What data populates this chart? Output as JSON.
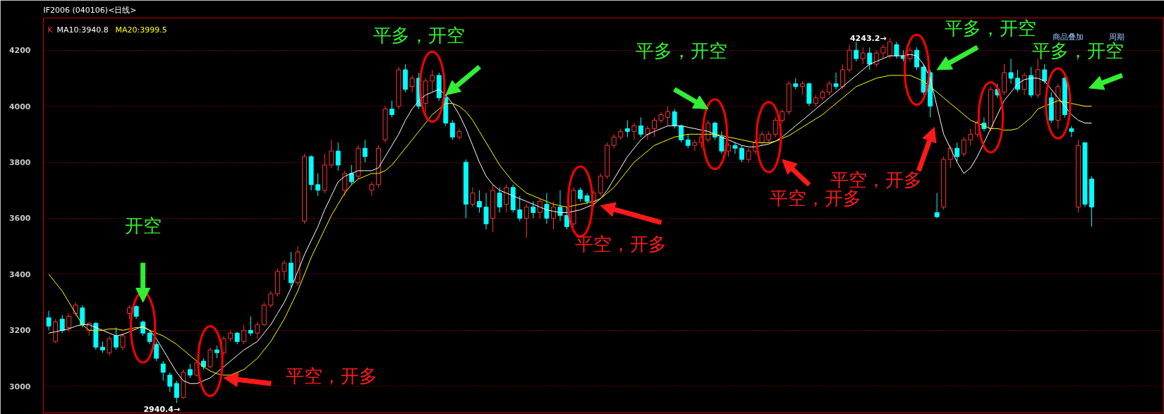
{
  "chart_data": {
    "type": "candlestick",
    "title": "IF2006 (040106)<日线>",
    "categories": [
      null,
      null,
      null,
      null,
      null,
      null,
      null,
      null,
      null,
      null,
      null,
      null,
      null,
      null,
      null,
      null,
      null,
      null,
      null,
      null,
      null,
      null,
      null,
      null,
      null,
      null,
      null,
      null,
      null,
      null,
      null,
      null,
      null,
      null,
      null,
      null,
      null,
      null,
      null,
      null,
      null,
      null,
      null,
      null,
      null,
      null,
      null,
      null,
      null,
      null,
      null,
      null,
      null,
      null,
      null,
      null,
      null,
      null,
      null,
      null,
      null,
      null,
      null,
      null,
      null,
      null,
      null,
      null,
      null,
      null,
      null,
      null,
      null,
      null,
      null,
      null,
      null,
      null,
      null,
      null,
      null,
      null,
      null,
      null,
      null,
      null,
      null,
      null,
      null,
      null,
      null,
      null,
      null,
      null,
      null,
      null,
      null,
      null,
      null,
      null,
      null,
      null,
      null,
      null,
      null,
      null,
      null,
      null,
      null,
      null,
      null,
      null,
      null,
      null,
      null,
      null,
      null,
      null,
      null,
      null,
      null,
      null,
      null,
      null,
      null,
      null,
      null,
      null,
      null,
      null,
      null,
      null,
      null,
      null,
      null,
      null,
      null,
      null,
      null,
      null,
      null,
      null,
      null,
      null,
      null,
      null,
      null,
      null,
      null,
      null,
      null,
      null,
      null,
      null,
      null,
      null
    ],
    "series": [
      {
        "name": "K",
        "ohlc": [
          [
            3245,
            3270,
            3200,
            3215
          ],
          [
            3160,
            3240,
            3155,
            3230
          ],
          [
            3240,
            3255,
            3190,
            3200
          ],
          [
            3210,
            3260,
            3195,
            3250
          ],
          [
            3260,
            3300,
            3250,
            3290
          ],
          [
            3280,
            3290,
            3210,
            3220
          ],
          [
            3200,
            3230,
            3180,
            3225
          ],
          [
            3225,
            3230,
            3130,
            3140
          ],
          [
            3140,
            3160,
            3120,
            3130
          ],
          [
            3120,
            3180,
            3110,
            3170
          ],
          [
            3180,
            3210,
            3130,
            3140
          ],
          [
            3140,
            3190,
            3130,
            3180
          ],
          [
            3260,
            3290,
            3240,
            3280
          ],
          [
            3285,
            3290,
            3240,
            3250
          ],
          [
            3230,
            3235,
            3180,
            3190
          ],
          [
            3190,
            3200,
            3150,
            3160
          ],
          [
            3150,
            3160,
            3090,
            3100
          ],
          [
            3080,
            3090,
            3020,
            3050
          ],
          [
            3040,
            3050,
            2980,
            3000
          ],
          [
            3010,
            3020,
            2940.4,
            2960
          ],
          [
            2960,
            3060,
            2955,
            3050
          ],
          [
            3060,
            3080,
            3030,
            3040
          ],
          [
            3040,
            3090,
            3035,
            3085
          ],
          [
            3090,
            3100,
            3060,
            3070
          ],
          [
            3070,
            3140,
            3065,
            3130
          ],
          [
            3130,
            3145,
            3100,
            3120
          ],
          [
            3120,
            3180,
            3110,
            3170
          ],
          [
            3170,
            3200,
            3160,
            3190
          ],
          [
            3190,
            3195,
            3150,
            3160
          ],
          [
            3160,
            3220,
            3150,
            3200
          ],
          [
            3200,
            3250,
            3180,
            3190
          ],
          [
            3190,
            3230,
            3170,
            3220
          ],
          [
            3220,
            3300,
            3215,
            3290
          ],
          [
            3290,
            3340,
            3280,
            3330
          ],
          [
            3330,
            3420,
            3320,
            3410
          ],
          [
            3410,
            3450,
            3380,
            3440
          ],
          [
            3440,
            3480,
            3350,
            3370
          ],
          [
            3370,
            3500,
            3360,
            3480
          ],
          [
            3590,
            3830,
            3580,
            3820
          ],
          [
            3820,
            3825,
            3700,
            3720
          ],
          [
            3720,
            3760,
            3680,
            3700
          ],
          [
            3700,
            3830,
            3690,
            3790
          ],
          [
            3790,
            3880,
            3780,
            3840
          ],
          [
            3840,
            3870,
            3770,
            3790
          ],
          [
            3700,
            3770,
            3680,
            3760
          ],
          [
            3760,
            3790,
            3720,
            3730
          ],
          [
            3750,
            3860,
            3740,
            3850
          ],
          [
            3850,
            3880,
            3800,
            3820
          ],
          [
            3700,
            3730,
            3680,
            3720
          ],
          [
            3720,
            3860,
            3710,
            3850
          ],
          [
            3880,
            4000,
            3870,
            3990
          ],
          [
            3990,
            4020,
            3960,
            3970
          ],
          [
            4000,
            4140,
            3990,
            4130
          ],
          [
            4130,
            4150,
            4050,
            4060
          ],
          [
            4070,
            4110,
            4050,
            4100
          ],
          [
            4100,
            4120,
            3990,
            4000
          ],
          [
            4010,
            4100,
            3980,
            4090
          ],
          [
            4090,
            4130,
            4050,
            4110
          ],
          [
            4110,
            4120,
            4020,
            4030
          ],
          [
            4030,
            4040,
            3930,
            3940
          ],
          [
            3940,
            3950,
            3880,
            3890
          ],
          [
            3890,
            3920,
            3880,
            3910
          ],
          [
            3800,
            3810,
            3600,
            3650
          ],
          [
            3650,
            3710,
            3640,
            3690
          ],
          [
            3660,
            3700,
            3620,
            3640
          ],
          [
            3640,
            3690,
            3560,
            3580
          ],
          [
            3600,
            3720,
            3550,
            3700
          ],
          [
            3690,
            3710,
            3620,
            3640
          ],
          [
            3650,
            3720,
            3620,
            3710
          ],
          [
            3710,
            3720,
            3620,
            3630
          ],
          [
            3630,
            3680,
            3590,
            3600
          ],
          [
            3600,
            3650,
            3530,
            3640
          ],
          [
            3640,
            3660,
            3600,
            3620
          ],
          [
            3620,
            3670,
            3600,
            3660
          ],
          [
            3650,
            3690,
            3580,
            3600
          ],
          [
            3600,
            3660,
            3560,
            3640
          ],
          [
            3640,
            3700,
            3590,
            3610
          ],
          [
            3610,
            3640,
            3560,
            3570
          ],
          [
            3580,
            3710,
            3570,
            3700
          ],
          [
            3700,
            3710,
            3660,
            3670
          ],
          [
            3680,
            3690,
            3650,
            3660
          ],
          [
            3660,
            3700,
            3640,
            3690
          ],
          [
            3690,
            3760,
            3680,
            3750
          ],
          [
            3750,
            3870,
            3740,
            3860
          ],
          [
            3860,
            3900,
            3850,
            3890
          ],
          [
            3890,
            3920,
            3880,
            3910
          ],
          [
            3920,
            3950,
            3890,
            3910
          ],
          [
            3910,
            3940,
            3880,
            3930
          ],
          [
            3930,
            3960,
            3890,
            3900
          ],
          [
            3900,
            3930,
            3880,
            3920
          ],
          [
            3920,
            3960,
            3890,
            3950
          ],
          [
            3950,
            3980,
            3940,
            3970
          ],
          [
            3960,
            4000,
            3930,
            3980
          ],
          [
            3980,
            3990,
            3920,
            3930
          ],
          [
            3930,
            3935,
            3870,
            3880
          ],
          [
            3880,
            3900,
            3850,
            3860
          ],
          [
            3860,
            3880,
            3840,
            3870
          ],
          [
            3870,
            3900,
            3850,
            3890
          ],
          [
            3880,
            3950,
            3870,
            3940
          ],
          [
            3940,
            3945,
            3880,
            3890
          ],
          [
            3890,
            3910,
            3830,
            3840
          ],
          [
            3840,
            3870,
            3820,
            3860
          ],
          [
            3860,
            3870,
            3830,
            3850
          ],
          [
            3850,
            3860,
            3800,
            3810
          ],
          [
            3810,
            3850,
            3800,
            3840
          ],
          [
            3840,
            3880,
            3830,
            3870
          ],
          [
            3870,
            3910,
            3860,
            3900
          ],
          [
            3880,
            3910,
            3870,
            3900
          ],
          [
            3900,
            3960,
            3890,
            3950
          ],
          [
            3950,
            3990,
            3940,
            3980
          ],
          [
            3980,
            4090,
            3970,
            4080
          ],
          [
            4080,
            4100,
            4060,
            4070
          ],
          [
            4070,
            4090,
            4040,
            4080
          ],
          [
            4080,
            4085,
            4000,
            4010
          ],
          [
            4010,
            4040,
            4000,
            4030
          ],
          [
            4030,
            4060,
            4020,
            4050
          ],
          [
            4050,
            4090,
            4040,
            4080
          ],
          [
            4080,
            4120,
            4060,
            4070
          ],
          [
            4070,
            4150,
            4060,
            4130
          ],
          [
            4130,
            4220,
            4120,
            4200
          ],
          [
            4200,
            4230,
            4160,
            4170
          ],
          [
            4170,
            4210,
            4150,
            4190
          ],
          [
            4190,
            4210,
            4130,
            4150
          ],
          [
            4150,
            4200,
            4140,
            4190
          ],
          [
            4190,
            4220,
            4170,
            4210
          ],
          [
            4180,
            4243.2,
            4170,
            4230
          ],
          [
            4220,
            4230,
            4170,
            4180
          ],
          [
            4180,
            4200,
            4160,
            4170
          ],
          [
            4170,
            4210,
            4160,
            4200
          ],
          [
            4200,
            4210,
            4130,
            4140
          ],
          [
            4140,
            4150,
            4040,
            4050
          ],
          [
            4120,
            4130,
            3960,
            4000
          ],
          [
            3620,
            3690,
            3600,
            3605
          ],
          [
            3640,
            3820,
            3630,
            3810
          ],
          [
            3810,
            3860,
            3780,
            3850
          ],
          [
            3850,
            3870,
            3800,
            3820
          ],
          [
            3830,
            3890,
            3820,
            3880
          ],
          [
            3880,
            3920,
            3860,
            3900
          ],
          [
            3900,
            3950,
            3890,
            3940
          ],
          [
            3940,
            3960,
            3910,
            3920
          ],
          [
            3920,
            4070,
            3910,
            4060
          ],
          [
            4060,
            4080,
            4030,
            4040
          ],
          [
            4050,
            4150,
            4040,
            4120
          ],
          [
            4120,
            4170,
            4080,
            4100
          ],
          [
            4100,
            4130,
            4050,
            4060
          ],
          [
            4060,
            4120,
            4040,
            4110
          ],
          [
            4110,
            4140,
            4030,
            4040
          ],
          [
            4040,
            4170,
            4030,
            4130
          ],
          [
            4130,
            4150,
            4080,
            4090
          ],
          [
            4030,
            4050,
            3940,
            3950
          ],
          [
            3950,
            4080,
            3920,
            4070
          ],
          [
            4100,
            4110,
            3960,
            3970
          ],
          [
            3920,
            3930,
            3890,
            3910
          ],
          [
            3640,
            3880,
            3620,
            3860
          ],
          [
            3870,
            3870,
            3640,
            3650
          ],
          [
            3740,
            3750,
            3570,
            3640
          ]
        ],
        "colors": [
          "#00ffff",
          "#ff3232",
          "#00ffff",
          "#ff3232",
          "#ff3232",
          "#00ffff",
          "#ff3232",
          "#00ffff",
          "#00ffff",
          "#ff3232",
          "#00ffff",
          "#ff3232",
          "#ff3232",
          "#00ffff",
          "#00ffff",
          "#00ffff",
          "#00ffff",
          "#00ffff",
          "#00ffff",
          "#00ffff",
          "#ff3232",
          "#00ffff",
          "#ff3232",
          "#00ffff",
          "#ff3232",
          "#00ffff",
          "#ff3232",
          "#ff3232",
          "#00ffff",
          "#ff3232",
          "#00ffff",
          "#ff3232",
          "#ff3232",
          "#ff3232",
          "#ff3232",
          "#ff3232",
          "#00ffff",
          "#ff3232",
          "#ff3232",
          "#00ffff",
          "#00ffff",
          "#ff3232",
          "#ff3232",
          "#00ffff",
          "#ff3232",
          "#00ffff",
          "#ff3232",
          "#00ffff",
          "#ff3232",
          "#ff3232",
          "#ff3232",
          "#00ffff",
          "#ff3232",
          "#00ffff",
          "#ff3232",
          "#00ffff",
          "#ff3232",
          "#ff3232",
          "#00ffff",
          "#00ffff",
          "#00ffff",
          "#ff3232",
          "#00ffff",
          "#ff3232",
          "#00ffff",
          "#00ffff",
          "#ff3232",
          "#00ffff",
          "#ff3232",
          "#00ffff",
          "#00ffff",
          "#ff3232",
          "#00ffff",
          "#ff3232",
          "#00ffff",
          "#ff3232",
          "#00ffff",
          "#00ffff",
          "#ff3232",
          "#00ffff",
          "#00ffff",
          "#ff3232",
          "#ff3232",
          "#ff3232",
          "#ff3232",
          "#ff3232",
          "#00ffff",
          "#ff3232",
          "#00ffff",
          "#ff3232",
          "#ff3232",
          "#ff3232",
          "#ff3232",
          "#00ffff",
          "#00ffff",
          "#00ffff",
          "#ff3232",
          "#ff3232",
          "#ff3232",
          "#00ffff",
          "#00ffff",
          "#ff3232",
          "#00ffff",
          "#00ffff",
          "#ff3232",
          "#ff3232",
          "#ff3232",
          "#ff3232",
          "#ff3232",
          "#ff3232",
          "#ff3232",
          "#00ffff",
          "#ff3232",
          "#00ffff",
          "#ff3232",
          "#ff3232",
          "#ff3232",
          "#00ffff",
          "#ff3232",
          "#ff3232",
          "#00ffff",
          "#ff3232",
          "#00ffff",
          "#ff3232",
          "#ff3232",
          "#ff3232",
          "#00ffff",
          "#00ffff",
          "#ff3232",
          "#00ffff",
          "#00ffff",
          "#00ffff",
          "#00ffff",
          "#ff3232",
          "#ff3232",
          "#00ffff",
          "#ff3232",
          "#ff3232",
          "#ff3232",
          "#00ffff",
          "#ff3232",
          "#00ffff",
          "#ff3232",
          "#00ffff",
          "#00ffff",
          "#ff3232",
          "#00ffff",
          "#ff3232",
          "#00ffff",
          "#00ffff",
          "#ff3232",
          "#00ffff",
          "#00ffff",
          "#ff3232",
          "#00ffff",
          "#00ffff"
        ]
      },
      {
        "name": "MA10:3940.8",
        "type": "line",
        "color": "#ffffff",
        "values": [
          3190,
          3195,
          3200,
          3205,
          3215,
          3220,
          3220,
          3210,
          3200,
          3190,
          3180,
          3185,
          3195,
          3205,
          3215,
          3200,
          3170,
          3130,
          3090,
          3050,
          3020,
          3010,
          3010,
          3020,
          3030,
          3050,
          3070,
          3090,
          3110,
          3130,
          3145,
          3160,
          3190,
          3220,
          3260,
          3300,
          3350,
          3410,
          3470,
          3520,
          3570,
          3630,
          3680,
          3730,
          3750,
          3760,
          3770,
          3770,
          3770,
          3780,
          3820,
          3860,
          3900,
          3950,
          3990,
          4020,
          4040,
          4050,
          4060,
          4040,
          4010,
          3970,
          3920,
          3860,
          3800,
          3750,
          3720,
          3700,
          3690,
          3680,
          3670,
          3660,
          3650,
          3640,
          3630,
          3625,
          3620,
          3620,
          3625,
          3630,
          3640,
          3650,
          3670,
          3700,
          3740,
          3780,
          3820,
          3850,
          3880,
          3900,
          3910,
          3920,
          3930,
          3930,
          3930,
          3925,
          3920,
          3915,
          3910,
          3900,
          3890,
          3880,
          3870,
          3860,
          3855,
          3855,
          3860,
          3865,
          3875,
          3890,
          3910,
          3930,
          3950,
          3970,
          3990,
          4010,
          4030,
          4050,
          4070,
          4090,
          4110,
          4130,
          4150,
          4160,
          4170,
          4180,
          4180,
          4180,
          4185,
          4180,
          4150,
          4100,
          4000,
          3900,
          3850,
          3800,
          3760,
          3780,
          3820,
          3870,
          3920,
          3970,
          4020,
          4050,
          4080,
          4095,
          4100,
          4100,
          4090,
          4060,
          4030,
          4000,
          3970,
          3950,
          3940,
          3940
        ]
      },
      {
        "name": "MA20:3999.5",
        "type": "line",
        "color": "#ffff00",
        "values": [
          3400,
          3370,
          3340,
          3300,
          3260,
          3220,
          3200,
          3200,
          3200,
          3205,
          3205,
          3200,
          3205,
          3210,
          3210,
          3200,
          3190,
          3180,
          3165,
          3150,
          3130,
          3110,
          3090,
          3070,
          3055,
          3045,
          3040,
          3040,
          3050,
          3060,
          3080,
          3100,
          3130,
          3160,
          3200,
          3240,
          3290,
          3340,
          3400,
          3460,
          3510,
          3560,
          3610,
          3650,
          3690,
          3720,
          3740,
          3750,
          3760,
          3760,
          3770,
          3790,
          3820,
          3850,
          3880,
          3910,
          3940,
          3970,
          3990,
          4010,
          4010,
          4000,
          3980,
          3950,
          3910,
          3870,
          3830,
          3790,
          3760,
          3730,
          3710,
          3690,
          3680,
          3670,
          3660,
          3650,
          3645,
          3640,
          3645,
          3650,
          3655,
          3660,
          3670,
          3690,
          3710,
          3740,
          3770,
          3800,
          3820,
          3840,
          3860,
          3870,
          3880,
          3890,
          3895,
          3900,
          3900,
          3900,
          3900,
          3900,
          3895,
          3890,
          3885,
          3880,
          3875,
          3870,
          3870,
          3870,
          3875,
          3885,
          3895,
          3910,
          3925,
          3940,
          3955,
          3970,
          3990,
          4010,
          4030,
          4050,
          4070,
          4080,
          4090,
          4100,
          4105,
          4110,
          4110,
          4110,
          4110,
          4100,
          4090,
          4070,
          4050,
          4030,
          4010,
          3990,
          3970,
          3950,
          3940,
          3930,
          3920,
          3920,
          3915,
          3915,
          3920,
          3940,
          3960,
          3990,
          4000,
          4010,
          4020,
          4015,
          4010,
          4005,
          4000,
          4000
        ]
      }
    ],
    "ylim": [
      2905,
      4315
    ],
    "yticks": [
      3000,
      3200,
      3400,
      3600,
      3800,
      4000,
      4200
    ],
    "grid": "y",
    "legend": "top left",
    "annotations": [
      "开空",
      "平空，开多",
      "平多，开空",
      "平空，开多",
      "平多，开空",
      "平空，开多",
      "平多，开空",
      "平空，开多",
      "平多，开空",
      "4243.2→",
      "2940.4→",
      "商品叠加",
      "周期"
    ]
  }
}
